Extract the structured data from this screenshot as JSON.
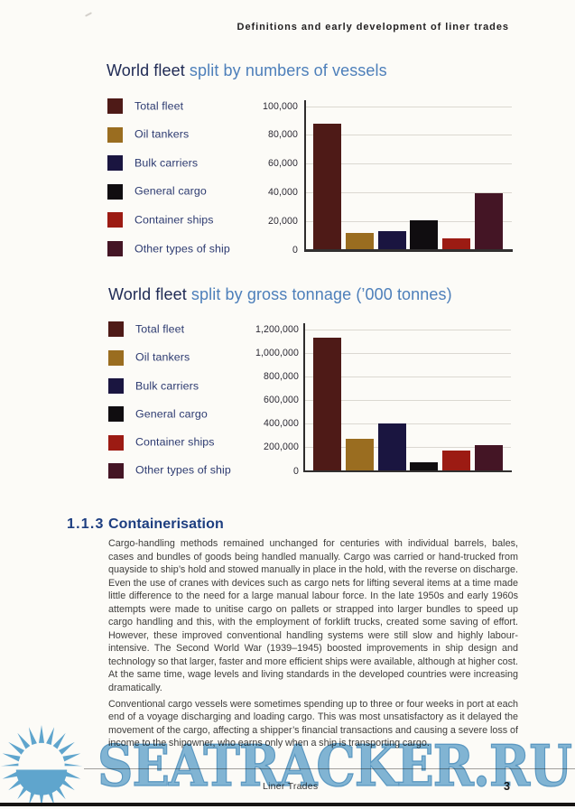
{
  "page": {
    "running_header": "Definitions and early development of liner trades",
    "footer": {
      "book_title": "Liner Trades",
      "page_number": "3"
    },
    "watermark": {
      "text": "SEATRACKER.RU",
      "icon": "sun-icon",
      "color": "#5fa5cd"
    }
  },
  "charts": [
    {
      "title_lead": "World fleet",
      "title_rest": "split by numbers of vessels"
    },
    {
      "title_lead": "World fleet",
      "title_rest": "split by gross tonnage (’000 tonnes)"
    }
  ],
  "chart_data": [
    {
      "type": "bar",
      "title": "World fleet split by numbers of vessels",
      "categories": [
        "Total fleet",
        "Oil tankers",
        "Bulk carriers",
        "General cargo",
        "Container ships",
        "Other types of ship"
      ],
      "values": [
        88000,
        12000,
        13000,
        21000,
        8000,
        39500
      ],
      "bar_colors": [
        "#4e1a17",
        "#9a6d20",
        "#1a1540",
        "#100d10",
        "#9c1b13",
        "#441525"
      ],
      "ylim": [
        0,
        100000
      ],
      "yticks": [
        100000,
        80000,
        60000,
        40000,
        20000,
        0
      ],
      "yticklabels": [
        "100,000",
        "80,000",
        "60,000",
        "40,000",
        "20,000",
        "0"
      ],
      "xlabel": "",
      "ylabel": "",
      "grid": true,
      "legend_position": "left"
    },
    {
      "type": "bar",
      "title": "World fleet split by gross tonnage ('000 tonnes)",
      "categories": [
        "Total fleet",
        "Oil tankers",
        "Bulk carriers",
        "General cargo",
        "Container ships",
        "Other types of ship"
      ],
      "values": [
        1130000,
        270000,
        405000,
        70000,
        172000,
        220000
      ],
      "bar_colors": [
        "#4e1a17",
        "#9a6d20",
        "#1a1540",
        "#100d10",
        "#9c1b13",
        "#441525"
      ],
      "ylim": [
        0,
        1200000
      ],
      "yticks": [
        1200000,
        1000000,
        800000,
        600000,
        400000,
        200000,
        0
      ],
      "yticklabels": [
        "1,200,000",
        "1,000,000",
        "800,000",
        "600,000",
        "400,000",
        "200,000",
        "0"
      ],
      "xlabel": "",
      "ylabel": "",
      "grid": true,
      "legend_position": "left"
    }
  ],
  "section": {
    "number": "1.1.3",
    "title": "Containerisation",
    "paragraphs": [
      "Cargo-handling methods remained unchanged for centuries with individual barrels, bales, cases and bundles of goods being handled manually. Cargo was carried or hand-trucked from quayside to ship’s hold and stowed manually in place in the hold, with the reverse on discharge. Even the use of cranes with devices such as cargo nets for lifting several items at a time made little difference to the need for a large manual labour force. In the late 1950s and early 1960s attempts were made to unitise cargo on pallets or strapped into larger bundles to speed up cargo handling and this, with the employment of forklift trucks, created some saving of effort. However, these improved conventional handling systems were still slow and highly labour-intensive. The Second World War (1939–1945) boosted improvements in ship design and technology so that larger, faster and more efficient ships were available, although at higher cost. At the same time, wage levels and living standards in the developed countries were increasing dramatically.",
      "Conventional cargo vessels were sometimes spending up to three or four weeks in port at each end of a voyage discharging and loading cargo. This was most unsatisfactory as it delayed the movement of the cargo, affecting a shipper’s financial transactions and causing a severe loss of income to the shipowner, who earns only when a ship is transporting cargo."
    ]
  }
}
